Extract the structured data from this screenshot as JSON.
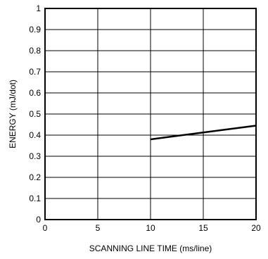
{
  "chart_data": {
    "type": "line",
    "xlabel": "SCANNING  LINE  TIME (ms/line)",
    "ylabel": "ENERGY (mJ/dot)",
    "xlim": [
      0,
      20
    ],
    "ylim": [
      0,
      1
    ],
    "xticks": [
      0,
      5,
      10,
      15,
      20
    ],
    "yticks": [
      0,
      0.1,
      0.2,
      0.3,
      0.4,
      0.5,
      0.6,
      0.7,
      0.8,
      0.9,
      1
    ],
    "x_tick_labels": [
      "0",
      "5",
      "10",
      "15",
      "20"
    ],
    "y_tick_labels": [
      "0",
      "0.1",
      "0.2",
      "0.3",
      "0.4",
      "0.5",
      "0.6",
      "0.7",
      "0.8",
      "0.9",
      "1"
    ],
    "grid": true,
    "series": [
      {
        "x": [
          10,
          20
        ],
        "y": [
          0.38,
          0.445
        ]
      }
    ],
    "colors": {
      "line": "#000000",
      "grid": "#000000",
      "frame": "#000000"
    }
  }
}
